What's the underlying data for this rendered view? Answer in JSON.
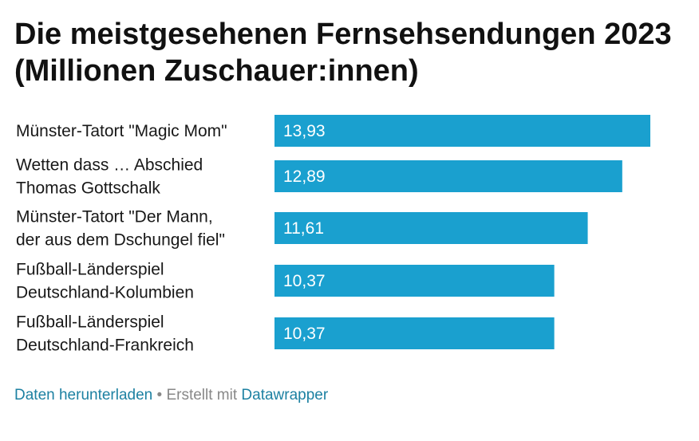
{
  "title": "Die meistgesehenen Fernsehsendungen 2023 (Millionen Zuschauer:innen)",
  "colors": {
    "bar": "#1aa0cf",
    "link": "#1d81a2",
    "footer_text": "#888888"
  },
  "chart_data": {
    "type": "bar",
    "orientation": "horizontal",
    "title": "Die meistgesehenen Fernsehsendungen 2023 (Millionen Zuschauer:innen)",
    "categories": [
      [
        "Münster-Tatort \"Magic Mom\""
      ],
      [
        "Wetten dass … Abschied",
        "Thomas Gottschalk"
      ],
      [
        "Münster-Tatort \"Der Mann,",
        "der aus dem Dschungel fiel\""
      ],
      [
        "Fußball-Länderspiel",
        "Deutschland-Kolumbien"
      ],
      [
        "Fußball-Länderspiel",
        "Deutschland-Frankreich"
      ]
    ],
    "values": [
      13.93,
      12.89,
      11.61,
      10.37,
      10.37
    ],
    "value_labels": [
      "13,93",
      "12,89",
      "11,61",
      "10,37",
      "10,37"
    ],
    "xlim": [
      0,
      13.93
    ],
    "xlabel": "",
    "ylabel": "",
    "grid": false,
    "legend": "none"
  },
  "footer": {
    "download_link": "Daten herunterladen",
    "separator": " • Erstellt mit ",
    "tool_link": "Datawrapper"
  }
}
